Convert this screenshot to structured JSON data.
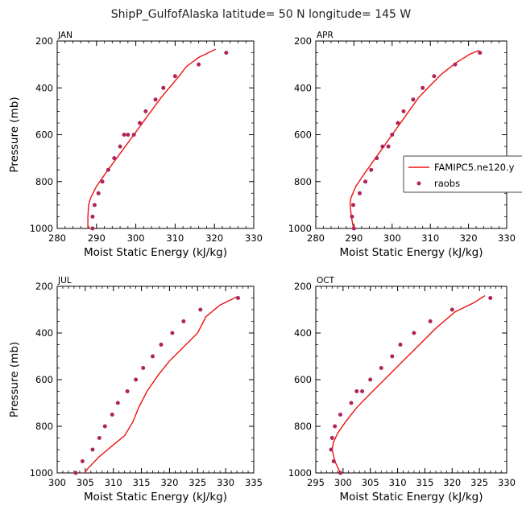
{
  "figure_title": "ShipP_GulfofAlaska  latitude= 50 N longitude= 145 W",
  "colors": {
    "model": "#ee1111",
    "obs": "#b0245a",
    "axis": "#000000"
  },
  "legend": {
    "model_label": "FAMIPC5.ne120.y",
    "obs_label": "raobs",
    "placement": "right-middle, on APR panel"
  },
  "chart_data": [
    {
      "type": "line",
      "panel": "JAN",
      "title": "JAN",
      "xlabel": "Moist Static Energy (kJ/kg)",
      "ylabel": "Pressure (mb)",
      "xlim": [
        280,
        330
      ],
      "ylim": [
        1000,
        200
      ],
      "xticks": [
        280,
        290,
        300,
        310,
        320,
        330
      ],
      "yticks": [
        200,
        400,
        600,
        800,
        1000
      ],
      "series": [
        {
          "name": "FAMIPC5.ne120.y",
          "kind": "line",
          "x": [
            287.8,
            287.8,
            288.0,
            288.5,
            290.0,
            292.5,
            296.0,
            299.5,
            303.0,
            306.5,
            309.0,
            311.0,
            312.8,
            316.0,
            320.3
          ],
          "y": [
            1010,
            950,
            900,
            870,
            820,
            760,
            680,
            600,
            520,
            440,
            390,
            350,
            310,
            270,
            235
          ]
        },
        {
          "name": "raobs",
          "kind": "scatter",
          "x": [
            289.0,
            289.0,
            289.5,
            290.5,
            291.5,
            293.0,
            294.5,
            296.0,
            297.0,
            298.0,
            299.5,
            301.0,
            302.5,
            305.0,
            307.0,
            310.0,
            316.0,
            323.0
          ],
          "y": [
            1000,
            950,
            900,
            850,
            800,
            750,
            700,
            650,
            600,
            600,
            600,
            550,
            500,
            450,
            400,
            350,
            300,
            250
          ]
        }
      ]
    },
    {
      "type": "line",
      "panel": "APR",
      "title": "APR",
      "xlabel": "Moist Static Energy (kJ/kg)",
      "ylabel": "",
      "xlim": [
        280,
        330
      ],
      "ylim": [
        1000,
        200
      ],
      "xticks": [
        280,
        290,
        300,
        310,
        320,
        330
      ],
      "yticks": [
        200,
        400,
        600,
        800,
        1000
      ],
      "series": [
        {
          "name": "FAMIPC5.ne120.y",
          "kind": "line",
          "x": [
            290.0,
            289.3,
            289.0,
            289.2,
            290.5,
            293.0,
            296.5,
            300.0,
            303.5,
            307.0,
            310.0,
            313.0,
            317.0,
            320.5,
            322.8
          ],
          "y": [
            1010,
            950,
            900,
            870,
            820,
            760,
            680,
            600,
            520,
            440,
            390,
            340,
            290,
            255,
            240
          ]
        },
        {
          "name": "raobs",
          "kind": "scatter",
          "x": [
            290.0,
            289.5,
            289.8,
            291.5,
            293.0,
            294.5,
            296.0,
            297.5,
            299.0,
            300.0,
            301.5,
            303.0,
            305.5,
            308.0,
            311.0,
            316.5,
            323.0
          ],
          "y": [
            1000,
            950,
            900,
            850,
            800,
            750,
            700,
            650,
            650,
            600,
            550,
            500,
            450,
            400,
            350,
            300,
            250
          ]
        }
      ]
    },
    {
      "type": "line",
      "panel": "JUL",
      "title": "JUL",
      "xlabel": "Moist Static Energy (kJ/kg)",
      "ylabel": "Pressure (mb)",
      "xlim": [
        300,
        335
      ],
      "ylim": [
        1000,
        200
      ],
      "xticks": [
        300,
        305,
        310,
        315,
        320,
        325,
        330,
        335
      ],
      "yticks": [
        200,
        400,
        600,
        800,
        1000
      ],
      "series": [
        {
          "name": "FAMIPC5.ne120.y",
          "kind": "line",
          "x": [
            304.3,
            305.5,
            307.5,
            310.0,
            312.0,
            313.5,
            314.5,
            316.0,
            318.0,
            320.0,
            322.5,
            325.0,
            326.5,
            329.0,
            332.0
          ],
          "y": [
            1020,
            980,
            930,
            880,
            840,
            780,
            720,
            650,
            580,
            520,
            460,
            400,
            330,
            280,
            245
          ]
        },
        {
          "name": "raobs",
          "kind": "scatter",
          "x": [
            303.3,
            304.5,
            306.3,
            307.5,
            308.5,
            309.8,
            310.8,
            312.5,
            314.0,
            315.3,
            317.0,
            318.5,
            320.5,
            322.5,
            325.5,
            332.2
          ],
          "y": [
            1000,
            950,
            900,
            850,
            800,
            750,
            700,
            650,
            600,
            550,
            500,
            450,
            400,
            350,
            300,
            250
          ]
        }
      ]
    },
    {
      "type": "line",
      "panel": "OCT",
      "title": "OCT",
      "xlabel": "Moist Static Energy (kJ/kg)",
      "ylabel": "",
      "xlim": [
        295,
        330
      ],
      "ylim": [
        1000,
        200
      ],
      "xticks": [
        295,
        300,
        305,
        310,
        315,
        320,
        325,
        330
      ],
      "yticks": [
        200,
        400,
        600,
        800,
        1000
      ],
      "series": [
        {
          "name": "FAMIPC5.ne120.y",
          "kind": "line",
          "x": [
            299.5,
            298.5,
            298.0,
            298.2,
            299.0,
            300.5,
            302.5,
            305.0,
            308.0,
            311.0,
            314.0,
            317.0,
            320.5,
            324.0,
            326.0
          ],
          "y": [
            1000,
            950,
            900,
            870,
            830,
            780,
            720,
            660,
            590,
            520,
            450,
            380,
            310,
            270,
            240
          ]
        },
        {
          "name": "raobs",
          "kind": "scatter",
          "x": [
            299.5,
            298.3,
            297.8,
            298.0,
            298.5,
            299.5,
            301.5,
            302.5,
            303.5,
            305.0,
            307.0,
            309.0,
            310.5,
            313.0,
            316.0,
            320.0,
            327.0
          ],
          "y": [
            1000,
            950,
            900,
            850,
            800,
            750,
            700,
            650,
            650,
            600,
            550,
            500,
            450,
            400,
            350,
            300,
            250
          ]
        }
      ]
    }
  ]
}
